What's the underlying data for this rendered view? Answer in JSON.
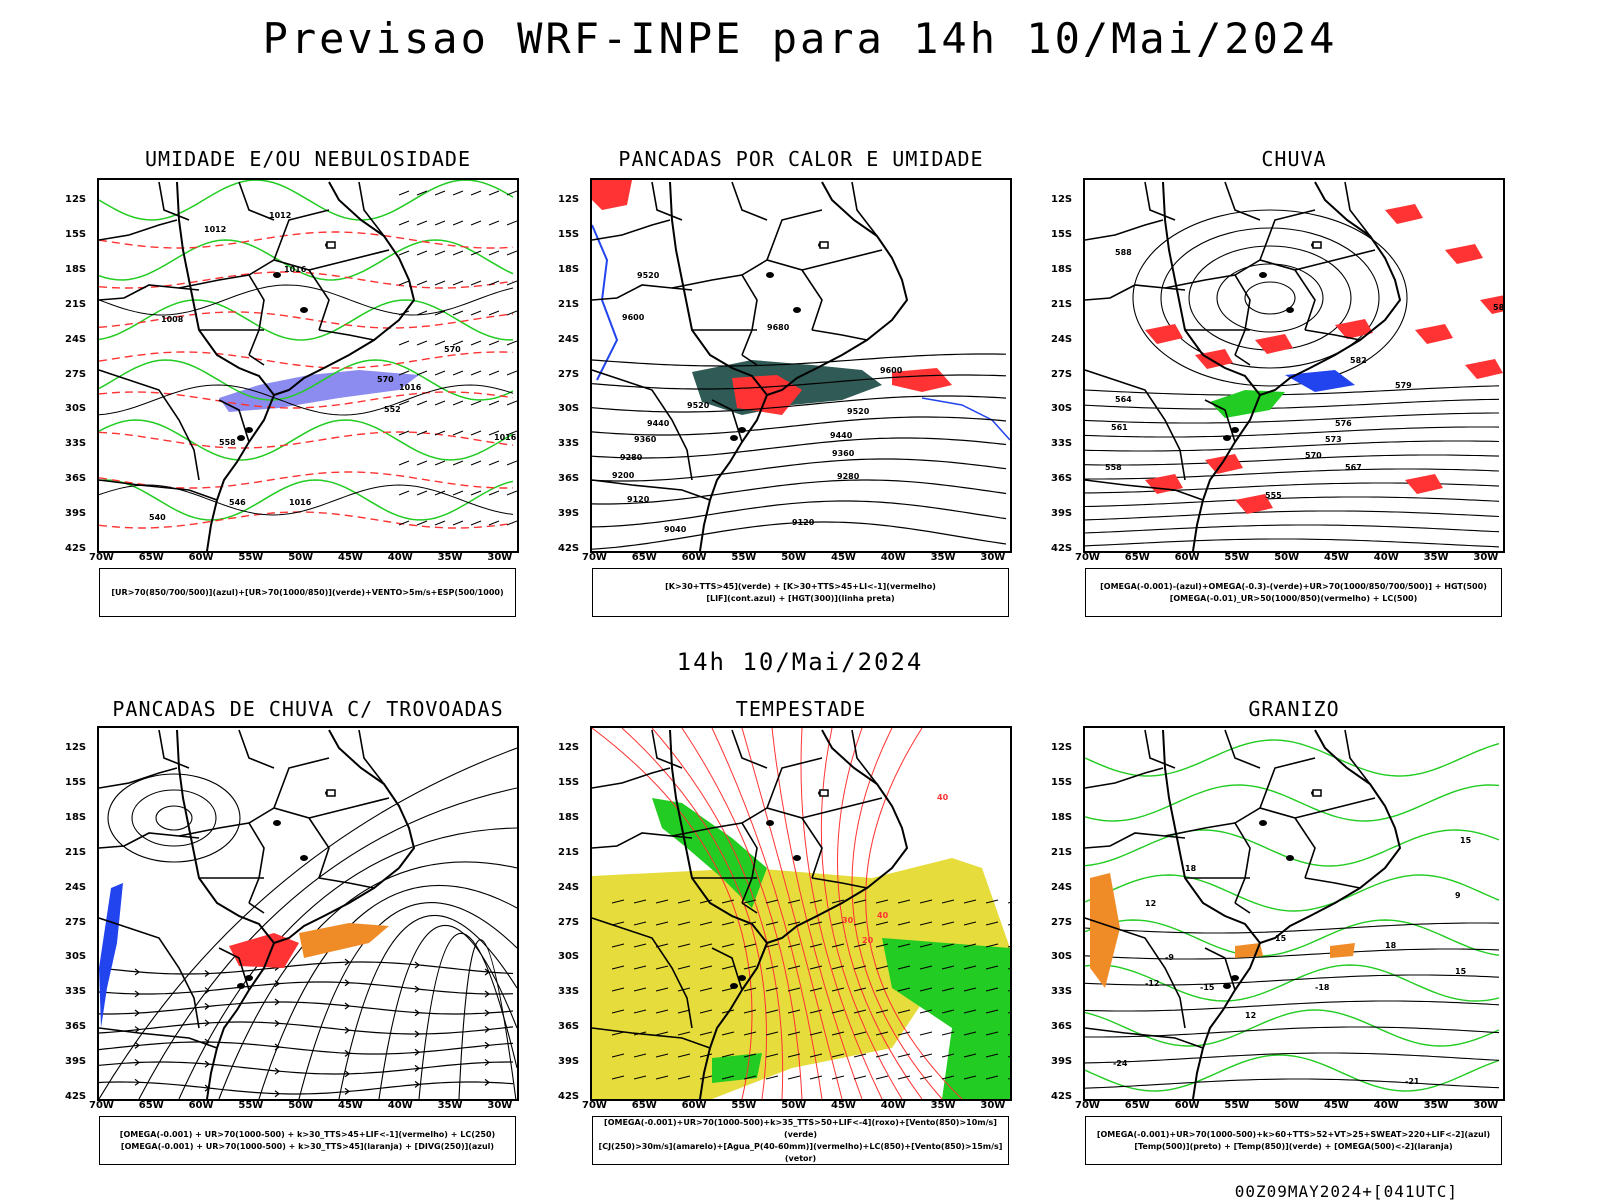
{
  "header": {
    "title": "Previsao WRF-INPE  para 14h 10/Mai/2024",
    "mid_label": "14h 10/Mai/2024"
  },
  "axes": {
    "lat_ticks": [
      "12S",
      "15S",
      "18S",
      "21S",
      "24S",
      "27S",
      "30S",
      "33S",
      "36S",
      "39S",
      "42S"
    ],
    "lon_ticks": [
      "70W",
      "65W",
      "60W",
      "55W",
      "50W",
      "45W",
      "40W",
      "35W",
      "30W"
    ]
  },
  "panels": [
    {
      "title": "UMIDADE E/OU NEBULOSIDADE",
      "legend": [
        "[UR>70(850/700/500)](azul)+[UR>70(1000/850)](verde)+VENTO>5m/s+ESP(500/1000)"
      ],
      "contour_labels": [
        "1012",
        "1012",
        "1016",
        "1008",
        "1016",
        "1016",
        "1016",
        "570",
        "570",
        "552",
        "558",
        "546",
        "540"
      ]
    },
    {
      "title": "PANCADAS POR CALOR E UMIDADE",
      "legend": [
        "[K>30+TTS>45](verde) + [K>30+TTS>45+LI<-1](vermelho)",
        "[LIF](cont.azul) + [HGT(300)](linha preta)"
      ],
      "contour_labels": [
        "9520",
        "9600",
        "9680",
        "9520",
        "9440",
        "9360",
        "9280",
        "9200",
        "9120",
        "9040",
        "9600",
        "9520",
        "9440",
        "9360",
        "9280",
        "9120"
      ]
    },
    {
      "title": "CHUVA",
      "legend": [
        "[OMEGA(-0.001)-(azul)+OMEGA(-0.3)-(verde)+UR>70(1000/850/700/500)] + HGT(500)",
        "[OMEGA(-0.01)_UR>50(1000/850)(vermelho) + LC(500)"
      ],
      "contour_labels": [
        "588",
        "585",
        "582",
        "579",
        "576",
        "573",
        "570",
        "567",
        "564",
        "561",
        "558",
        "555"
      ]
    },
    {
      "title": "PANCADAS DE CHUVA C/ TROVOADAS",
      "legend": [
        "[OMEGA(-0.001) + UR>70(1000-500) + k>30_TTS>45+LIF<-1](vermelho) + LC(250)",
        "[OMEGA(-0.001) + UR>70(1000-500) + k>30_TTS>45](laranja) + [DIVG(250)](azul)"
      ],
      "contour_labels": []
    },
    {
      "title": "TEMPESTADE",
      "legend": [
        "[OMEGA(-0.001)+UR>70(1000-500)+k>35_TTS>50+LIF<-4](roxo)+[Vento(850)>10m/s](verde)",
        "[CJ(250)>30m/s](amarelo)+[Agua_P(40-60mm)](vermelho)+LC(850)+[Vento(850)>15m/s](vetor)"
      ],
      "contour_labels": [
        "40",
        "40",
        "30",
        "20"
      ]
    },
    {
      "title": "GRANIZO",
      "legend": [
        "[OMEGA(-0.001)+UR>70(1000-500)+k>60+TTS>52+VT>25+SWEAT>220+LIF<-2](azul)",
        "[Temp(500)](preto) + [Temp(850)](verde) + [OMEGA(500)<-2](laranja)"
      ],
      "contour_labels": [
        "-9",
        "-12",
        "-15",
        "-18",
        "-21",
        "-24",
        "15",
        "12",
        "18",
        "15",
        "9",
        "18",
        "15",
        "12"
      ]
    }
  ],
  "footer": {
    "run": "00Z09MAY2024+[041UTC]"
  },
  "colors": {
    "humidity_blue": "#8c8cf0",
    "humidity_green": "#22cc22",
    "red": "#ff3333",
    "dark_teal": "#2f5a55",
    "yellow": "#e6dc3c",
    "orange": "#f08c28",
    "blue": "#2244ee"
  }
}
